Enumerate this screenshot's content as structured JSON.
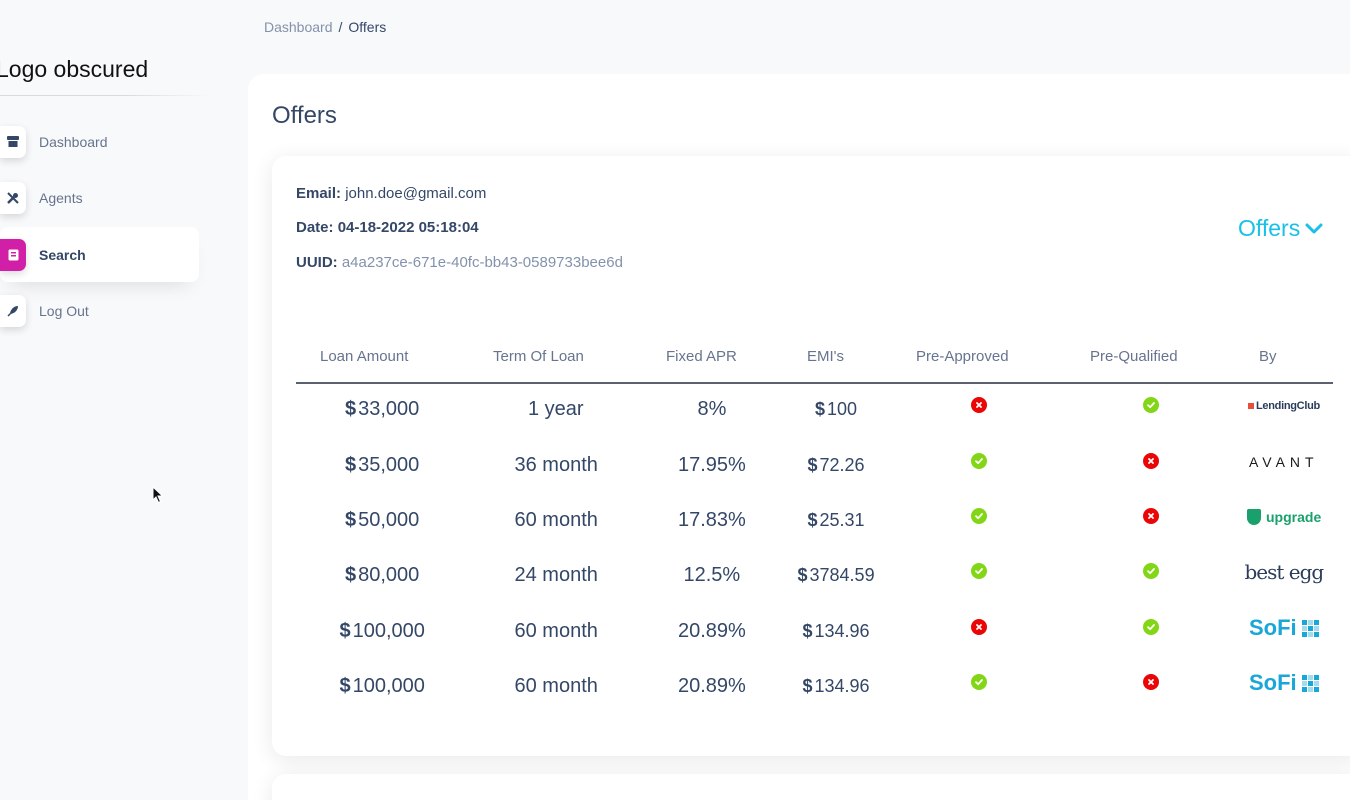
{
  "sidebar": {
    "logo": "Logo obscured",
    "items": [
      {
        "label": "Dashboard",
        "icon": "shop-icon",
        "active": false
      },
      {
        "label": "Agents",
        "icon": "tools-icon",
        "active": false
      },
      {
        "label": "Search",
        "icon": "document-icon",
        "active": true
      },
      {
        "label": "Log Out",
        "icon": "rocket-icon",
        "active": false
      }
    ]
  },
  "breadcrumb": {
    "parent": "Dashboard",
    "separator": "/",
    "current": "Offers"
  },
  "page": {
    "title": "Offers"
  },
  "offer": {
    "email_label": "Email:",
    "email": "john.doe@gmail.com",
    "date_label": "Date:",
    "date": "04-18-2022 05:18:04",
    "uuid_label": "UUID:",
    "uuid": "a4a237ce-671e-40fc-bb43-0589733bee6d",
    "toggle_label": "Offers"
  },
  "table": {
    "headers": [
      "Loan Amount",
      "Term Of Loan",
      "Fixed APR",
      "EMI's",
      "Pre-Approved",
      "Pre-Qualified",
      "By"
    ],
    "currency": "$",
    "rows": [
      {
        "amount": "33,000",
        "term": "1 year",
        "apr": "8%",
        "emi": "100",
        "pre_approved": false,
        "pre_qualified": true,
        "lender": "LendingClub"
      },
      {
        "amount": "35,000",
        "term": "36 month",
        "apr": "17.95%",
        "emi": "72.26",
        "pre_approved": true,
        "pre_qualified": false,
        "lender": "AVANT"
      },
      {
        "amount": "50,000",
        "term": "60 month",
        "apr": "17.83%",
        "emi": "25.31",
        "pre_approved": true,
        "pre_qualified": false,
        "lender": "upgrade"
      },
      {
        "amount": "80,000",
        "term": "24 month",
        "apr": "12.5%",
        "emi": "3784.59",
        "pre_approved": true,
        "pre_qualified": true,
        "lender": "best egg"
      },
      {
        "amount": "100,000",
        "term": "60 month",
        "apr": "20.89%",
        "emi": "134.96",
        "pre_approved": false,
        "pre_qualified": true,
        "lender": "SoFi"
      },
      {
        "amount": "100,000",
        "term": "60 month",
        "apr": "20.89%",
        "emi": "134.96",
        "pre_approved": true,
        "pre_qualified": false,
        "lender": "SoFi"
      }
    ]
  },
  "colors": {
    "accent": "#17c1e8",
    "active_nav": "#d21fa7",
    "success": "#82d616",
    "danger": "#ea0606"
  }
}
